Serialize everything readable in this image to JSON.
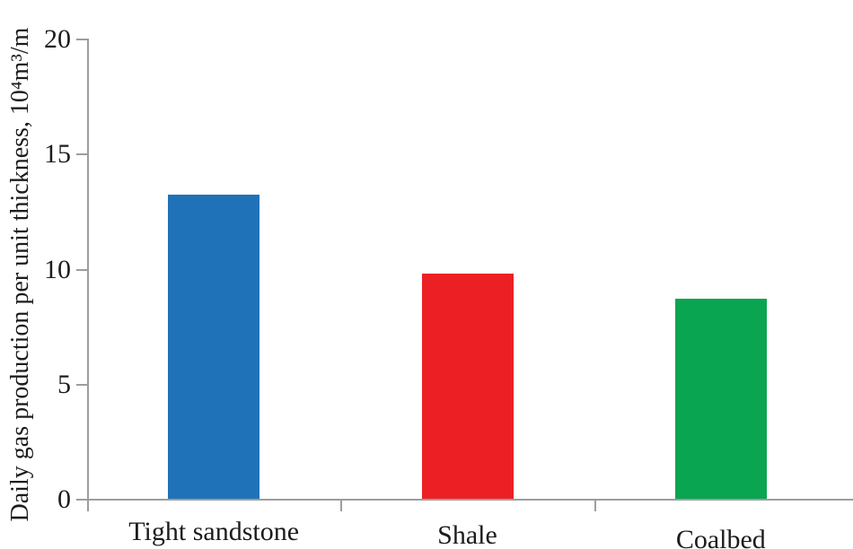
{
  "chart_data": {
    "type": "bar",
    "title": "",
    "categories": [
      "Tight sandstone",
      "Shale",
      "Coalbed"
    ],
    "values": [
      13.2,
      9.8,
      8.7
    ],
    "bar_colors": [
      "#2072b8",
      "#ec2024",
      "#0aa551"
    ],
    "xlabel": "",
    "ylabel": "Daily gas production per unit thickness, 10⁴m³/m",
    "ylim": [
      0,
      20
    ],
    "yticks": [
      "0",
      "5",
      "10",
      "15",
      "20"
    ],
    "ytick_values": [
      0,
      5,
      10,
      15,
      20
    ],
    "grid": false,
    "legend_position": "none",
    "axis_color": "#9d9d9d",
    "text_color": "#1c1c1c",
    "background_color": "#ffffff"
  }
}
